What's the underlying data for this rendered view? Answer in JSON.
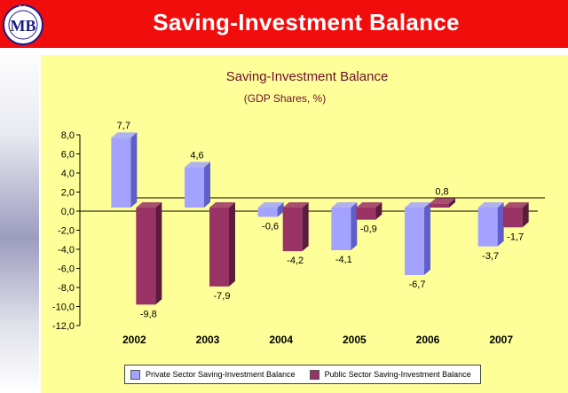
{
  "header": {
    "title": "Saving-Investment Balance",
    "logo_text": "MB",
    "logo_top": "T.C.",
    "background": "#f20d0d"
  },
  "colors": {
    "private": "#a3a3ff",
    "private_side": "#5f5fcc",
    "public": "#993366",
    "public_side": "#5c1a3c",
    "panel": "#ffff99"
  },
  "chart_data": {
    "type": "bar",
    "title": "Saving-Investment Balance",
    "subtitle": "(GDP Shares, %)",
    "categories": [
      "2002",
      "2003",
      "2004",
      "2005",
      "2006",
      "2007"
    ],
    "series": [
      {
        "name": "Private Sector Saving-Investment Balance",
        "values": [
          7.7,
          4.6,
          -0.6,
          -4.1,
          -6.7,
          -3.7
        ]
      },
      {
        "name": "Public Sector Saving-Investment Balance",
        "values": [
          -9.8,
          -7.9,
          -4.2,
          -0.9,
          0.8,
          -1.7
        ]
      }
    ],
    "data_labels": [
      [
        "7,7",
        "4,6",
        "-0,6",
        "-4,1",
        "-6,7",
        "-3,7"
      ],
      [
        "-9,8",
        "-7,9",
        "-4,2",
        "-0,9",
        "0,8",
        "-1,7"
      ]
    ],
    "ylim": [
      -12,
      8
    ],
    "yticks": [
      "8,0",
      "6,0",
      "4,0",
      "2,0",
      "0,0",
      "-2,0",
      "-4,0",
      "-6,0",
      "-8,0",
      "-10,0",
      "-12,0"
    ],
    "ytick_values": [
      8,
      6,
      4,
      2,
      0,
      -2,
      -4,
      -6,
      -8,
      -10,
      -12
    ],
    "legend_position": "bottom",
    "grid": false
  }
}
